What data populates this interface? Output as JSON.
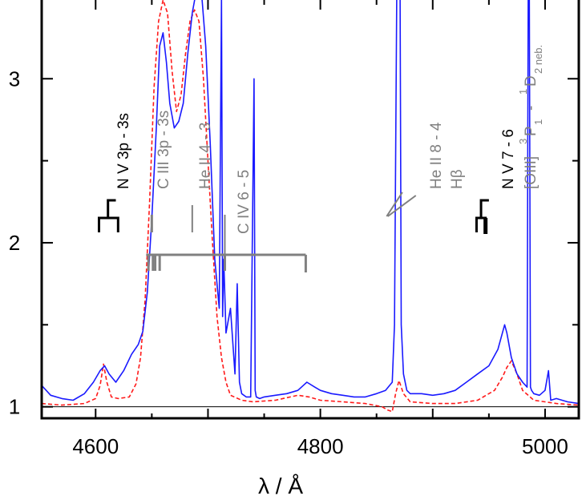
{
  "chart_data": {
    "type": "line",
    "title": "",
    "xlabel": "λ / Å",
    "ylabel": "",
    "xlim": [
      4552,
      5030
    ],
    "ylim": [
      0.93,
      3.48
    ],
    "xticks": [
      4600,
      4800,
      5000
    ],
    "yticks": [
      1,
      2,
      3
    ],
    "grid": false,
    "legend": "none",
    "continuum_level": 1.0,
    "colors": {
      "observed": "#1a1aff",
      "model": "#ff1a1a",
      "label_black": "#000000",
      "label_gray": "#808080"
    },
    "series": [
      {
        "style": "solid",
        "color": "#1a1aff",
        "x": [
          4552,
          4560,
          4570,
          4580,
          4590,
          4598,
          4604,
          4608,
          4612,
          4618,
          4625,
          4632,
          4638,
          4642,
          4646,
          4650,
          4654,
          4657,
          4660,
          4663,
          4666,
          4670,
          4674,
          4678,
          4682,
          4686,
          4690,
          4694,
          4698,
          4702,
          4706,
          4710,
          4712,
          4713,
          4714,
          4716,
          4720,
          4724,
          4726,
          4728,
          4730,
          4734,
          4738,
          4741,
          4742,
          4743,
          4746,
          4750,
          4760,
          4770,
          4780,
          4788,
          4795,
          4800,
          4810,
          4820,
          4830,
          4840,
          4850,
          4858,
          4864,
          4866,
          4868,
          4869,
          4871,
          4872,
          4874,
          4877,
          4880,
          4890,
          4900,
          4910,
          4920,
          4930,
          4940,
          4950,
          4958,
          4962,
          4964,
          4966,
          4970,
          4975,
          4980,
          4984,
          4985,
          4986,
          4987,
          4988,
          4990,
          4995,
          5000,
          5003,
          5005,
          5010,
          5020,
          5030
        ],
        "y": [
          1.13,
          1.07,
          1.05,
          1.04,
          1.08,
          1.15,
          1.22,
          1.25,
          1.2,
          1.15,
          1.22,
          1.32,
          1.38,
          1.46,
          1.7,
          2.15,
          2.7,
          3.2,
          3.28,
          3.1,
          2.85,
          2.7,
          2.74,
          2.85,
          3.15,
          3.4,
          3.55,
          3.55,
          3.2,
          2.6,
          1.9,
          1.6,
          3.5,
          1.55,
          1.9,
          1.45,
          1.6,
          1.2,
          1.75,
          1.15,
          1.08,
          1.06,
          1.06,
          3.0,
          1.1,
          1.06,
          1.05,
          1.06,
          1.07,
          1.08,
          1.1,
          1.15,
          1.12,
          1.1,
          1.08,
          1.07,
          1.06,
          1.06,
          1.08,
          1.1,
          1.15,
          1.5,
          3.5,
          3.5,
          3.5,
          1.5,
          1.2,
          1.1,
          1.08,
          1.08,
          1.07,
          1.08,
          1.1,
          1.15,
          1.2,
          1.25,
          1.35,
          1.45,
          1.5,
          1.45,
          1.3,
          1.2,
          1.15,
          1.12,
          3.5,
          3.5,
          1.12,
          1.1,
          1.08,
          1.07,
          1.1,
          1.22,
          1.04,
          1.05,
          1.03,
          1.02
        ]
      },
      {
        "style": "dashed",
        "color": "#ff1a1a",
        "x": [
          4552,
          4570,
          4590,
          4600,
          4604,
          4607,
          4610,
          4614,
          4620,
          4630,
          4636,
          4640,
          4644,
          4648,
          4652,
          4656,
          4660,
          4664,
          4668,
          4672,
          4676,
          4680,
          4684,
          4688,
          4692,
          4696,
          4700,
          4704,
          4708,
          4712,
          4716,
          4720,
          4730,
          4740,
          4760,
          4780,
          4790,
          4800,
          4820,
          4840,
          4855,
          4860,
          4864,
          4867,
          4870,
          4874,
          4880,
          4900,
          4920,
          4940,
          4955,
          4962,
          4966,
          4970,
          4975,
          4980,
          4990,
          5000,
          5010,
          5030
        ],
        "y": [
          1.02,
          1.01,
          1.02,
          1.05,
          1.13,
          1.26,
          1.15,
          1.06,
          1.05,
          1.06,
          1.14,
          1.3,
          1.65,
          2.25,
          2.95,
          3.35,
          3.48,
          3.4,
          3.05,
          2.8,
          2.9,
          3.15,
          3.35,
          3.42,
          3.35,
          3.0,
          2.5,
          2.0,
          1.55,
          1.3,
          1.15,
          1.07,
          1.04,
          1.03,
          1.04,
          1.07,
          1.06,
          1.04,
          1.03,
          1.02,
          1.0,
          0.98,
          0.97,
          1.08,
          1.16,
          1.08,
          1.03,
          1.02,
          1.02,
          1.04,
          1.1,
          1.18,
          1.24,
          1.28,
          1.2,
          1.1,
          1.04,
          1.03,
          1.02,
          1.01
        ]
      }
    ],
    "annotations": [
      {
        "text": "N V 3p - 3s",
        "color": "#000000",
        "x": 4618,
        "y_top": 3.2
      },
      {
        "text": "C III 3p - 3s",
        "color": "#808080",
        "x": 4650,
        "y_top": 2.95
      },
      {
        "text": "He II 4 - 3",
        "color": "#808080",
        "x": 4686,
        "y_top": 2.95
      },
      {
        "text": "C IV 6 - 5",
        "color": "#808080",
        "x": 4715,
        "y_top": 2.6
      },
      {
        "text": "He II 8 - 4",
        "color": "#808080",
        "x": 4859,
        "y_top": 3.05
      },
      {
        "text": "Hβ",
        "color": "#808080",
        "x": 4861,
        "y_top": 3.05
      },
      {
        "text": "N V 7 - 6",
        "color": "#000000",
        "x": 4945,
        "y_top": 3.05
      },
      {
        "text": "[OIII]",
        "color": "#808080",
        "x": 4963,
        "y_top": 3.3
      }
    ],
    "oiii_label": {
      "base": "[OIII]",
      "super_left": "3",
      "main_p": "P",
      "sub_p": "1",
      "dash": "-",
      "super_right": "1",
      "main_d": "D",
      "sub_d": "2 neb."
    }
  }
}
